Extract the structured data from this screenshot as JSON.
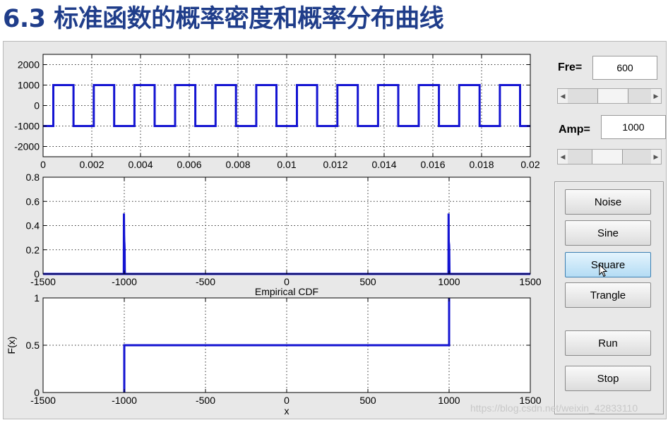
{
  "slide": {
    "title": "6.3 标准函数的概率密度和概率分布曲线",
    "title_color": "#1f3d8a",
    "watermark": "https://blog.csdn.net/weixin_42833110"
  },
  "controls": {
    "fre_label": "Fre=",
    "fre_value": "600",
    "fre_slider_position": 0.55,
    "amp_label": "Amp=",
    "amp_value": "1000",
    "amp_slider_position": 0.45,
    "buttons": {
      "noise": "Noise",
      "sine": "Sine",
      "square": "Square",
      "trangle": "Trangle",
      "run": "Run",
      "stop": "Stop"
    },
    "hovered_button": "square"
  },
  "chart_data": [
    {
      "type": "line",
      "name": "signal",
      "color": "#1414d2",
      "xlim": [
        0,
        0.02
      ],
      "ylim": [
        -2500,
        2500
      ],
      "xticks": [
        0,
        0.002,
        0.004,
        0.006,
        0.008,
        0.01,
        0.012,
        0.014,
        0.016,
        0.018,
        0.02
      ],
      "xtick_labels": [
        "0",
        "0.002",
        "0.004",
        "0.006",
        "0.008",
        "0.01",
        "0.012",
        "0.014",
        "0.016",
        "0.018",
        "0.02"
      ],
      "yticks": [
        -2000,
        -1000,
        0,
        1000,
        2000
      ],
      "ytick_labels": [
        "-2000",
        "-1000",
        "0",
        "1000",
        "2000"
      ],
      "grid": true,
      "series": [
        {
          "waveform": "square",
          "amplitude": 1000,
          "frequency": 600,
          "x": [
            0,
            0.00042,
            0.00042,
            0.00125,
            0.00125,
            0.00208,
            0.00208,
            0.00292,
            0.00292,
            0.00375,
            0.00375,
            0.00458,
            0.00458,
            0.00542,
            0.00542,
            0.00625,
            0.00625,
            0.00708,
            0.00708,
            0.00792,
            0.00792,
            0.00875,
            0.00875,
            0.00958,
            0.00958,
            0.01042,
            0.01042,
            0.01125,
            0.01125,
            0.01208,
            0.01208,
            0.01292,
            0.01292,
            0.01375,
            0.01375,
            0.01458,
            0.01458,
            0.01542,
            0.01542,
            0.01625,
            0.01625,
            0.01708,
            0.01708,
            0.01792,
            0.01792,
            0.01875,
            0.01875,
            0.01958,
            0.01958,
            0.02
          ],
          "y": [
            -1000,
            -1000,
            1000,
            1000,
            -1000,
            -1000,
            1000,
            1000,
            -1000,
            -1000,
            1000,
            1000,
            -1000,
            -1000,
            1000,
            1000,
            -1000,
            -1000,
            1000,
            1000,
            -1000,
            -1000,
            1000,
            1000,
            -1000,
            -1000,
            1000,
            1000,
            -1000,
            -1000,
            1000,
            1000,
            -1000,
            -1000,
            1000,
            1000,
            -1000,
            -1000,
            1000,
            1000,
            -1000,
            -1000,
            1000,
            1000,
            -1000,
            -1000,
            1000,
            1000,
            -1000,
            -1000
          ]
        }
      ]
    },
    {
      "type": "line",
      "name": "pdf",
      "color": "#1414d2",
      "xlim": [
        -1500,
        1500
      ],
      "ylim": [
        0,
        0.8
      ],
      "xticks": [
        -1500,
        -1000,
        -500,
        0,
        500,
        1000,
        1500
      ],
      "xtick_labels": [
        "-1500",
        "-1000",
        "-500",
        "0",
        "500",
        "1000",
        "1500"
      ],
      "yticks": [
        0,
        0.2,
        0.4,
        0.6,
        0.8
      ],
      "ytick_labels": [
        "0",
        "0.2",
        "0.4",
        "0.6",
        "0.8"
      ],
      "grid": true,
      "series": [
        {
          "x": [
            -1500,
            -1003,
            -1002,
            -1001,
            -1000,
            -999,
            -998,
            -997,
            -996,
            996,
            997,
            998,
            999,
            1000,
            1001,
            1002,
            1003,
            1500
          ],
          "y": [
            0,
            0,
            0.5,
            0.32,
            0.27,
            0.25,
            0.2,
            0.04,
            0,
            0,
            0.5,
            0.27,
            0.25,
            0.24,
            0.2,
            0.03,
            0,
            0
          ]
        }
      ]
    },
    {
      "type": "line",
      "name": "cdf",
      "title": "Empirical CDF",
      "xlabel": "x",
      "ylabel": "F(x)",
      "color": "#1414d2",
      "xlim": [
        -1500,
        1500
      ],
      "ylim": [
        0,
        1
      ],
      "xticks": [
        -1500,
        -1000,
        -500,
        0,
        500,
        1000,
        1500
      ],
      "xtick_labels": [
        "-1500",
        "-1000",
        "-500",
        "0",
        "500",
        "1000",
        "1500"
      ],
      "yticks": [
        0,
        0.5,
        1
      ],
      "ytick_labels": [
        "0",
        "0.5",
        "1"
      ],
      "grid": true,
      "series": [
        {
          "x": [
            -1000,
            -1000,
            1000,
            1000
          ],
          "y": [
            0,
            0.5,
            0.5,
            1
          ]
        }
      ]
    }
  ]
}
